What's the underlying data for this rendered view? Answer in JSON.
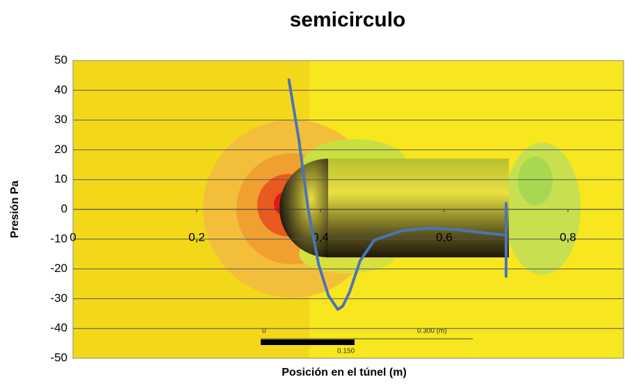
{
  "chart_data": {
    "type": "line",
    "title": "semicirculo",
    "x_label": "Posición  en el túnel (m)",
    "y_label": "Presión Pa",
    "xlim": [
      0,
      0.89
    ],
    "ylim": [
      -50,
      50
    ],
    "xticks": [
      0,
      {
        "value": 0.2,
        "label": "0,2"
      },
      {
        "value": 0.4,
        "label": "0,4"
      },
      {
        "value": 0.6,
        "label": "0,6"
      },
      {
        "value": 0.8,
        "label": "0,8"
      }
    ],
    "yticks": [
      -50,
      -40,
      -30,
      -20,
      -10,
      0,
      10,
      20,
      30,
      40,
      50
    ],
    "grid": true,
    "annotations": [
      "0",
      "0.300  (m)",
      "0.150"
    ],
    "series": [
      {
        "color": "#4a74b8",
        "x": [
          0.349,
          0.365,
          0.38,
          0.397,
          0.413,
          0.428,
          0.436,
          0.447,
          0.464,
          0.487,
          0.531,
          0.576,
          0.621,
          0.666,
          0.698,
          0.7,
          0.7,
          0.7
        ],
        "values": [
          43.5,
          23.6,
          0.2,
          -18.5,
          -29,
          -33.6,
          -32.5,
          -27.8,
          -17.3,
          -10.3,
          -7.2,
          -6.3,
          -6.8,
          -7.9,
          -8.6,
          -8.6,
          2,
          -22.5
        ]
      }
    ]
  }
}
